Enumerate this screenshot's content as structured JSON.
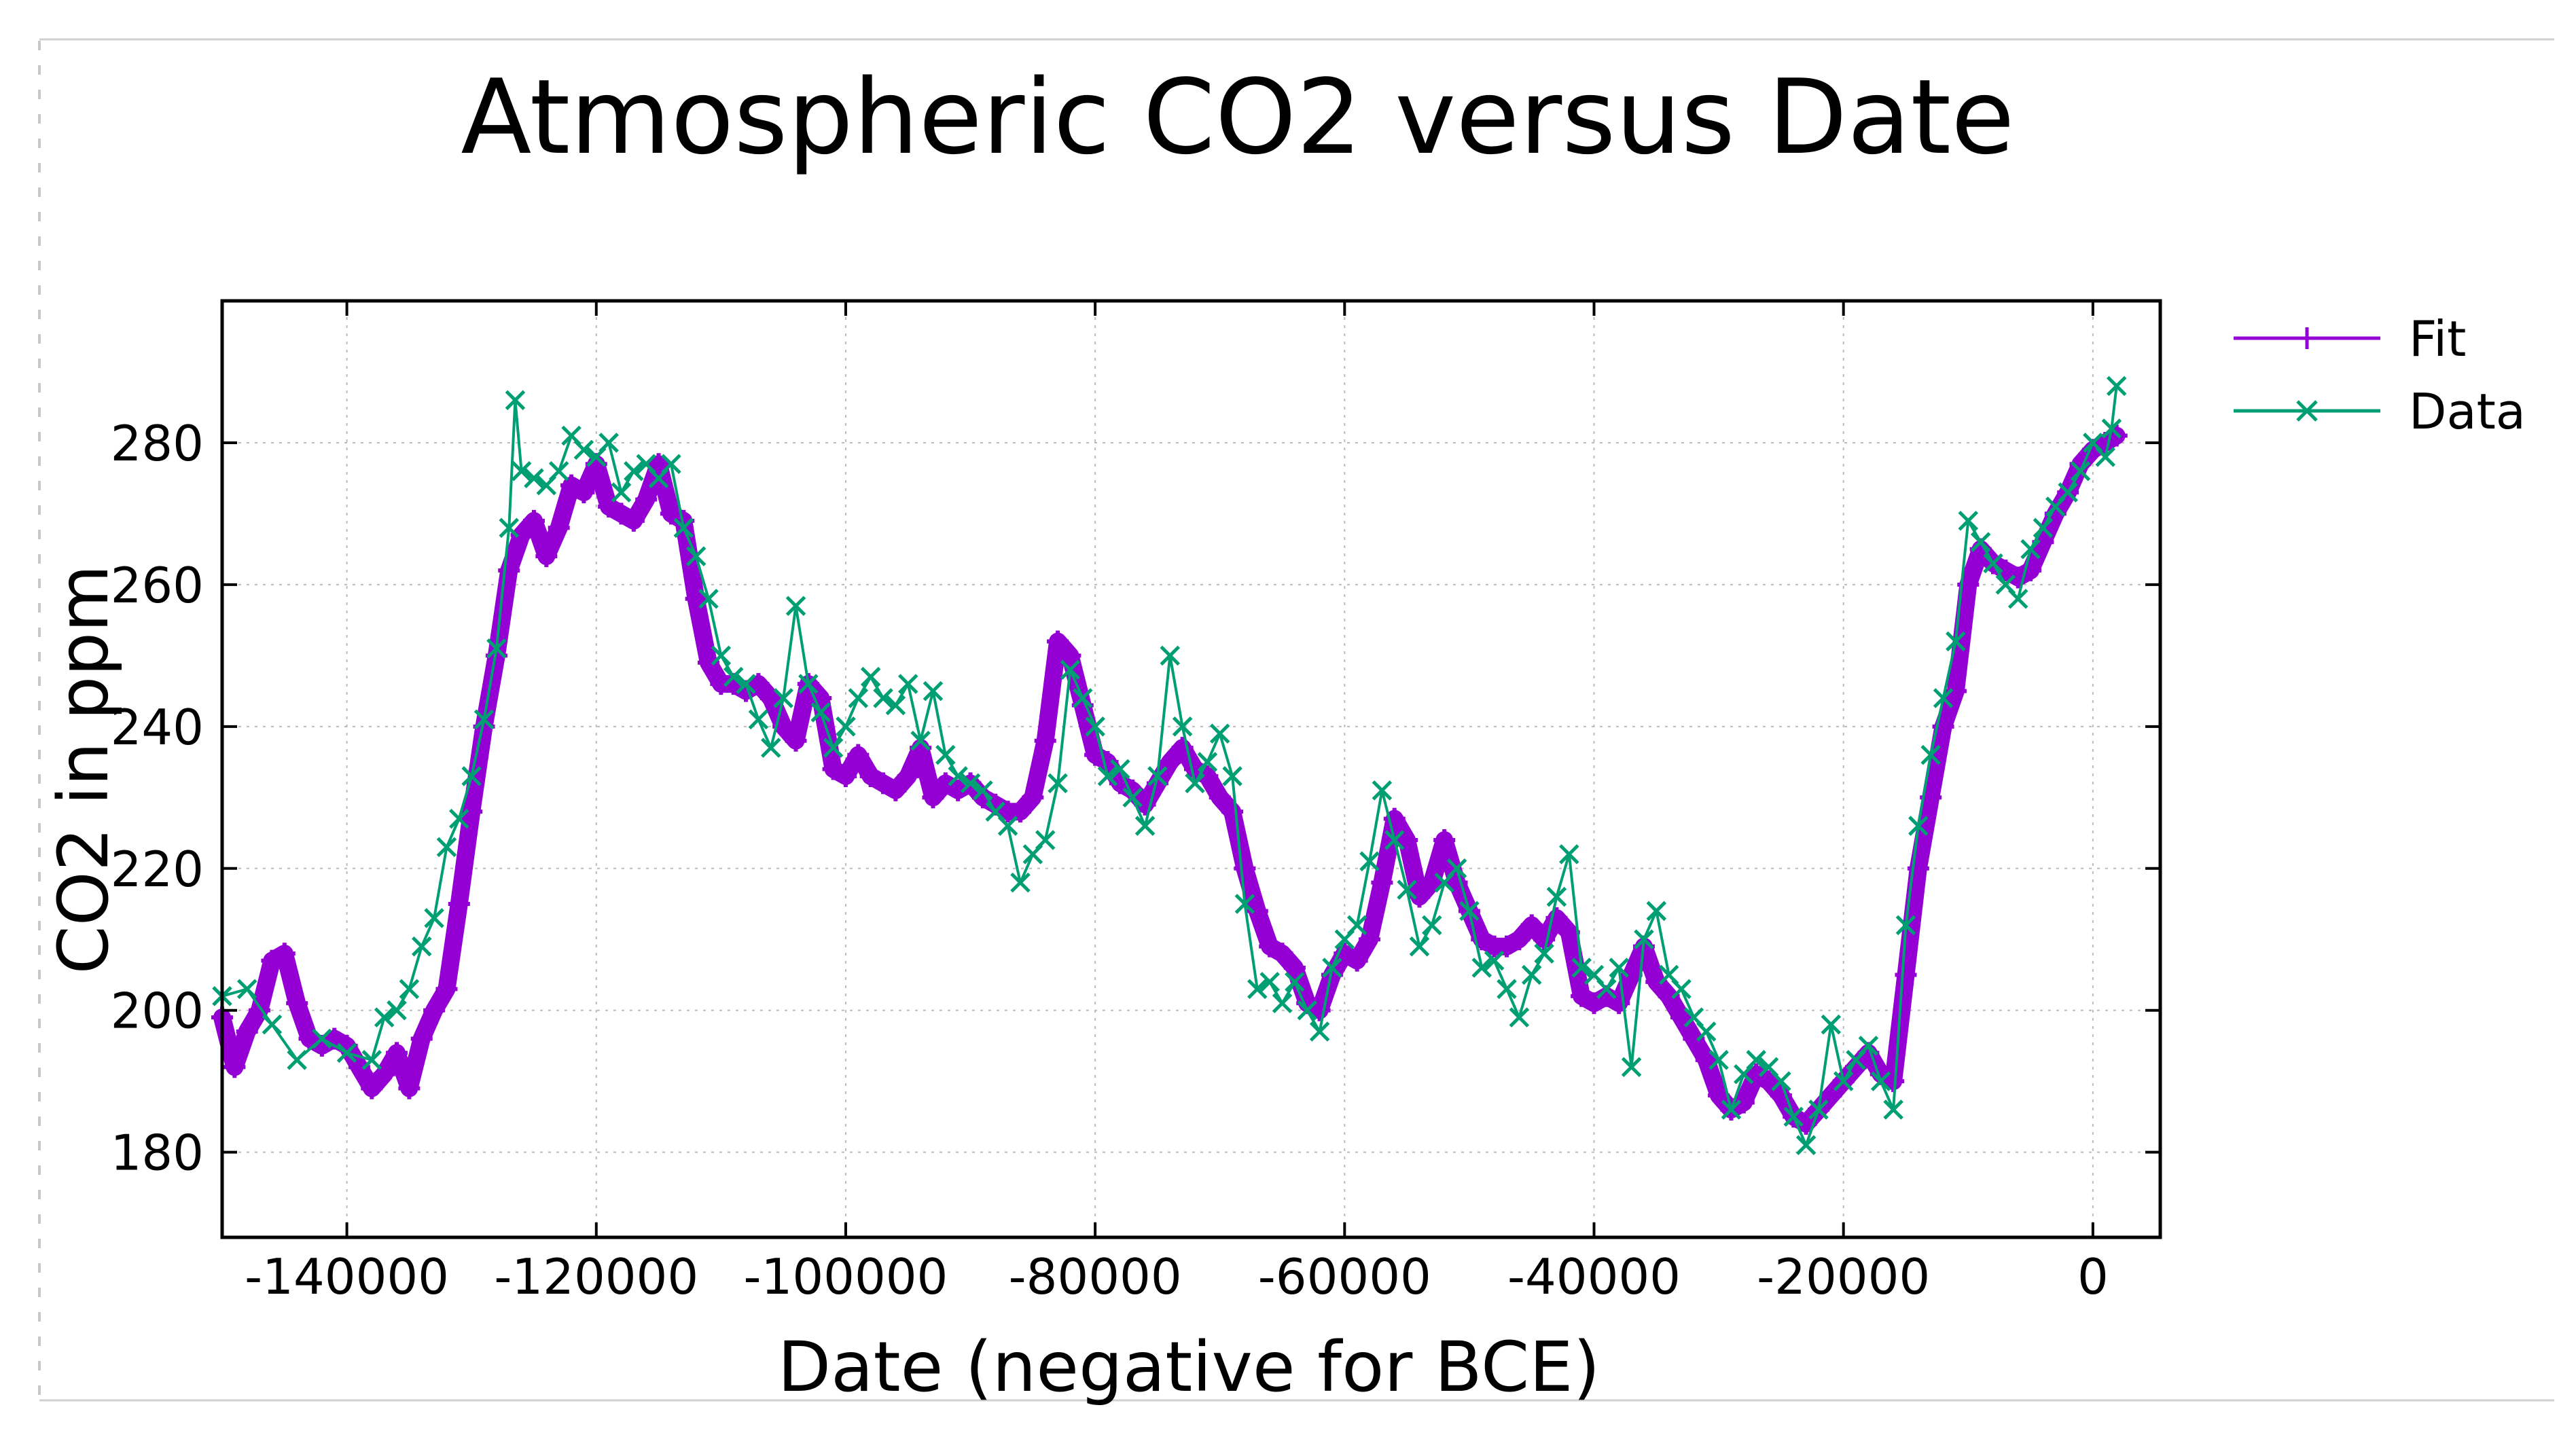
{
  "chart_data": {
    "type": "line",
    "title": "Atmospheric CO2 versus Date",
    "xlabel": "Date (negative for BCE)",
    "ylabel": "CO2 in ppm",
    "xlim": [
      -150000,
      5400
    ],
    "ylim": [
      168,
      300
    ],
    "x_ticks": [
      -140000,
      -120000,
      -100000,
      -80000,
      -60000,
      -40000,
      -20000,
      0
    ],
    "x_tick_labels": [
      "-140000",
      "-120000",
      "-100000",
      "-80000",
      "-60000",
      "-40000",
      "-20000",
      "0"
    ],
    "y_ticks": [
      180,
      200,
      220,
      240,
      260,
      280
    ],
    "y_tick_labels": [
      "180",
      "200",
      "220",
      "240",
      "260",
      "280"
    ],
    "grid": true,
    "legend_position": "outside-top-right",
    "colors": {
      "fit": "#9400d3",
      "data": "#009e73"
    },
    "series": [
      {
        "name": "Fit",
        "marker": "plus",
        "points": [
          [
            -150000,
            199
          ],
          [
            -149000,
            192
          ],
          [
            -148000,
            197
          ],
          [
            -147000,
            200
          ],
          [
            -146000,
            207
          ],
          [
            -145000,
            208
          ],
          [
            -144000,
            201
          ],
          [
            -143000,
            196
          ],
          [
            -142000,
            195
          ],
          [
            -141000,
            196
          ],
          [
            -140000,
            195
          ],
          [
            -139000,
            192
          ],
          [
            -138000,
            189
          ],
          [
            -137000,
            191
          ],
          [
            -136000,
            194
          ],
          [
            -135000,
            189
          ],
          [
            -134000,
            196
          ],
          [
            -133000,
            200
          ],
          [
            -132000,
            203
          ],
          [
            -131000,
            215
          ],
          [
            -130000,
            228
          ],
          [
            -129000,
            240
          ],
          [
            -128000,
            250
          ],
          [
            -127000,
            262
          ],
          [
            -126000,
            267
          ],
          [
            -125000,
            269
          ],
          [
            -124000,
            264
          ],
          [
            -123000,
            268
          ],
          [
            -122000,
            274
          ],
          [
            -121000,
            273
          ],
          [
            -120000,
            277
          ],
          [
            -119000,
            271
          ],
          [
            -118000,
            270
          ],
          [
            -117000,
            269
          ],
          [
            -116000,
            272
          ],
          [
            -115000,
            277
          ],
          [
            -114000,
            270
          ],
          [
            -113000,
            269
          ],
          [
            -112000,
            258
          ],
          [
            -111000,
            249
          ],
          [
            -110000,
            246
          ],
          [
            -109000,
            246
          ],
          [
            -108000,
            245
          ],
          [
            -107000,
            246
          ],
          [
            -106000,
            244
          ],
          [
            -105000,
            240
          ],
          [
            -104000,
            238
          ],
          [
            -103000,
            246
          ],
          [
            -102000,
            244
          ],
          [
            -101000,
            234
          ],
          [
            -100000,
            233
          ],
          [
            -99000,
            236
          ],
          [
            -98000,
            233
          ],
          [
            -97000,
            232
          ],
          [
            -96000,
            231
          ],
          [
            -95000,
            233
          ],
          [
            -94000,
            237
          ],
          [
            -93000,
            230
          ],
          [
            -92000,
            232
          ],
          [
            -91000,
            231
          ],
          [
            -90000,
            232
          ],
          [
            -89000,
            230
          ],
          [
            -88000,
            229
          ],
          [
            -87000,
            228
          ],
          [
            -86000,
            228
          ],
          [
            -85000,
            230
          ],
          [
            -84000,
            238
          ],
          [
            -83000,
            252
          ],
          [
            -82000,
            250
          ],
          [
            -81000,
            243
          ],
          [
            -80000,
            236
          ],
          [
            -79000,
            235
          ],
          [
            -78000,
            232
          ],
          [
            -77000,
            231
          ],
          [
            -76000,
            229
          ],
          [
            -75000,
            232
          ],
          [
            -74000,
            235
          ],
          [
            -73000,
            237
          ],
          [
            -72000,
            234
          ],
          [
            -71000,
            233
          ],
          [
            -70000,
            230
          ],
          [
            -69000,
            228
          ],
          [
            -68000,
            220
          ],
          [
            -67000,
            214
          ],
          [
            -66000,
            209
          ],
          [
            -65000,
            208
          ],
          [
            -64000,
            206
          ],
          [
            -63000,
            201
          ],
          [
            -62000,
            200
          ],
          [
            -61000,
            205
          ],
          [
            -60000,
            208
          ],
          [
            -59000,
            207
          ],
          [
            -58000,
            210
          ],
          [
            -57000,
            218
          ],
          [
            -56000,
            227
          ],
          [
            -55000,
            224
          ],
          [
            -54000,
            216
          ],
          [
            -53000,
            218
          ],
          [
            -52000,
            224
          ],
          [
            -51000,
            218
          ],
          [
            -50000,
            214
          ],
          [
            -49000,
            210
          ],
          [
            -48000,
            209
          ],
          [
            -47000,
            209
          ],
          [
            -46000,
            210
          ],
          [
            -45000,
            212
          ],
          [
            -44000,
            210
          ],
          [
            -43000,
            213
          ],
          [
            -42000,
            211
          ],
          [
            -41000,
            202
          ],
          [
            -40000,
            201
          ],
          [
            -39000,
            202
          ],
          [
            -38000,
            201
          ],
          [
            -37000,
            205
          ],
          [
            -36000,
            209
          ],
          [
            -35000,
            204
          ],
          [
            -34000,
            202
          ],
          [
            -33000,
            199
          ],
          [
            -32000,
            196
          ],
          [
            -31000,
            193
          ],
          [
            -30000,
            188
          ],
          [
            -29000,
            186
          ],
          [
            -28000,
            187
          ],
          [
            -27000,
            191
          ],
          [
            -26000,
            190
          ],
          [
            -25000,
            188
          ],
          [
            -24000,
            185
          ],
          [
            -23000,
            184
          ],
          [
            -22000,
            186
          ],
          [
            -21000,
            188
          ],
          [
            -20000,
            190
          ],
          [
            -19000,
            192
          ],
          [
            -18000,
            194
          ],
          [
            -17000,
            191
          ],
          [
            -16000,
            190
          ],
          [
            -15000,
            205
          ],
          [
            -14000,
            220
          ],
          [
            -13000,
            230
          ],
          [
            -12000,
            240
          ],
          [
            -11000,
            245
          ],
          [
            -10000,
            260
          ],
          [
            -9000,
            265
          ],
          [
            -8000,
            263
          ],
          [
            -7000,
            262
          ],
          [
            -6000,
            261
          ],
          [
            -5000,
            262
          ],
          [
            -4000,
            266
          ],
          [
            -3000,
            270
          ],
          [
            -2000,
            273
          ],
          [
            -1000,
            277
          ],
          [
            0,
            279
          ],
          [
            1000,
            280
          ],
          [
            1900,
            281
          ]
        ]
      },
      {
        "name": "Data",
        "marker": "x",
        "points": [
          [
            -150000,
            202
          ],
          [
            -148000,
            203
          ],
          [
            -146000,
            198
          ],
          [
            -144000,
            193
          ],
          [
            -142000,
            196
          ],
          [
            -140000,
            194
          ],
          [
            -138000,
            193
          ],
          [
            -137000,
            199
          ],
          [
            -136000,
            200
          ],
          [
            -135000,
            203
          ],
          [
            -134000,
            209
          ],
          [
            -133000,
            213
          ],
          [
            -132000,
            223
          ],
          [
            -131000,
            227
          ],
          [
            -130000,
            233
          ],
          [
            -129000,
            241
          ],
          [
            -128000,
            251
          ],
          [
            -127000,
            268
          ],
          [
            -126500,
            286
          ],
          [
            -126000,
            276
          ],
          [
            -125000,
            275
          ],
          [
            -124000,
            274
          ],
          [
            -123000,
            276
          ],
          [
            -122000,
            281
          ],
          [
            -121000,
            279
          ],
          [
            -120000,
            278
          ],
          [
            -119000,
            280
          ],
          [
            -118000,
            273
          ],
          [
            -117000,
            276
          ],
          [
            -116000,
            277
          ],
          [
            -115000,
            275
          ],
          [
            -114000,
            277
          ],
          [
            -113000,
            268
          ],
          [
            -112000,
            264
          ],
          [
            -111000,
            258
          ],
          [
            -110000,
            250
          ],
          [
            -109000,
            247
          ],
          [
            -108000,
            246
          ],
          [
            -107000,
            241
          ],
          [
            -106000,
            237
          ],
          [
            -105000,
            244
          ],
          [
            -104000,
            257
          ],
          [
            -103000,
            246
          ],
          [
            -102000,
            242
          ],
          [
            -101000,
            237
          ],
          [
            -100000,
            240
          ],
          [
            -99000,
            244
          ],
          [
            -98000,
            247
          ],
          [
            -97000,
            244
          ],
          [
            -96000,
            243
          ],
          [
            -95000,
            246
          ],
          [
            -94000,
            238
          ],
          [
            -93000,
            245
          ],
          [
            -92000,
            236
          ],
          [
            -91000,
            233
          ],
          [
            -90000,
            232
          ],
          [
            -89000,
            231
          ],
          [
            -88000,
            228
          ],
          [
            -87000,
            226
          ],
          [
            -86000,
            218
          ],
          [
            -85000,
            222
          ],
          [
            -84000,
            224
          ],
          [
            -83000,
            232
          ],
          [
            -82000,
            248
          ],
          [
            -81000,
            244
          ],
          [
            -80000,
            240
          ],
          [
            -79000,
            233
          ],
          [
            -78000,
            234
          ],
          [
            -77000,
            230
          ],
          [
            -76000,
            226
          ],
          [
            -75000,
            233
          ],
          [
            -74000,
            250
          ],
          [
            -73000,
            240
          ],
          [
            -72000,
            232
          ],
          [
            -71000,
            235
          ],
          [
            -70000,
            239
          ],
          [
            -69000,
            233
          ],
          [
            -68000,
            215
          ],
          [
            -67000,
            203
          ],
          [
            -66000,
            204
          ],
          [
            -65000,
            201
          ],
          [
            -64000,
            204
          ],
          [
            -63000,
            200
          ],
          [
            -62000,
            197
          ],
          [
            -61000,
            206
          ],
          [
            -60000,
            210
          ],
          [
            -59000,
            212
          ],
          [
            -58000,
            221
          ],
          [
            -57000,
            231
          ],
          [
            -56000,
            224
          ],
          [
            -55000,
            217
          ],
          [
            -54000,
            209
          ],
          [
            -53000,
            212
          ],
          [
            -52000,
            218
          ],
          [
            -51000,
            220
          ],
          [
            -50000,
            214
          ],
          [
            -49000,
            206
          ],
          [
            -48000,
            207
          ],
          [
            -47000,
            203
          ],
          [
            -46000,
            199
          ],
          [
            -45000,
            205
          ],
          [
            -44000,
            208
          ],
          [
            -43000,
            216
          ],
          [
            -42000,
            222
          ],
          [
            -41000,
            206
          ],
          [
            -40000,
            205
          ],
          [
            -39000,
            203
          ],
          [
            -38000,
            206
          ],
          [
            -37000,
            192
          ],
          [
            -36000,
            210
          ],
          [
            -35000,
            214
          ],
          [
            -34000,
            205
          ],
          [
            -33000,
            203
          ],
          [
            -32000,
            199
          ],
          [
            -31000,
            197
          ],
          [
            -30000,
            193
          ],
          [
            -29000,
            186
          ],
          [
            -28000,
            191
          ],
          [
            -27000,
            193
          ],
          [
            -26000,
            192
          ],
          [
            -25000,
            190
          ],
          [
            -24000,
            185
          ],
          [
            -23000,
            181
          ],
          [
            -22000,
            186
          ],
          [
            -21000,
            198
          ],
          [
            -20000,
            190
          ],
          [
            -19000,
            193
          ],
          [
            -18000,
            195
          ],
          [
            -17000,
            190
          ],
          [
            -16000,
            186
          ],
          [
            -15000,
            212
          ],
          [
            -14000,
            226
          ],
          [
            -13000,
            236
          ],
          [
            -12000,
            244
          ],
          [
            -11000,
            252
          ],
          [
            -10000,
            269
          ],
          [
            -9000,
            266
          ],
          [
            -8000,
            263
          ],
          [
            -7000,
            260
          ],
          [
            -6000,
            258
          ],
          [
            -5000,
            265
          ],
          [
            -4000,
            268
          ],
          [
            -3000,
            271
          ],
          [
            -2000,
            273
          ],
          [
            -1000,
            276
          ],
          [
            0,
            280
          ],
          [
            1000,
            278
          ],
          [
            1500,
            282
          ],
          [
            1900,
            288
          ]
        ]
      }
    ]
  }
}
